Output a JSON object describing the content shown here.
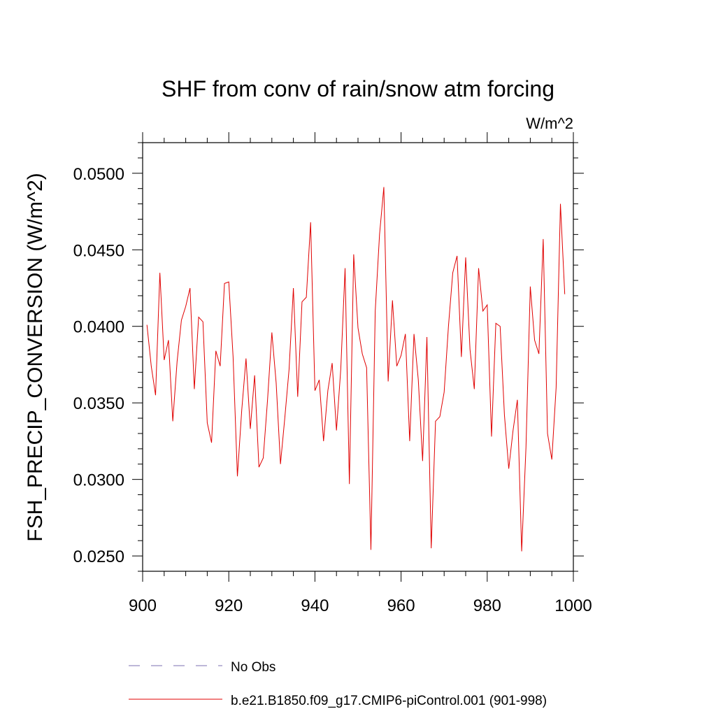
{
  "chart_data": {
    "type": "line",
    "title": "SHF from conv of rain/snow atm forcing",
    "units_label": "W/m^2",
    "ylabel": "FSH_PRECIP_CONVERSION  (W/m^2)",
    "xlabel": "",
    "xlim": [
      900,
      1000
    ],
    "ylim": [
      0.024,
      0.052
    ],
    "xticks": [
      900,
      920,
      940,
      960,
      980,
      1000
    ],
    "xtick_labels": [
      "900",
      "920",
      "940",
      "960",
      "980",
      "1000"
    ],
    "yticks": [
      0.025,
      0.03,
      0.035,
      0.04,
      0.045,
      0.05
    ],
    "ytick_labels": [
      "0.0250",
      "0.0300",
      "0.0350",
      "0.0400",
      "0.0450",
      "0.0500"
    ],
    "grid": false,
    "legend_position": "bottom",
    "legend": [
      {
        "label": "No Obs",
        "color": "#7b6fb0",
        "style": "dashed"
      },
      {
        "label": "b.e21.B1850.f09_g17.CMIP6-piControl.001 (901-998)",
        "color": "#e00000",
        "style": "solid"
      }
    ],
    "series": [
      {
        "name": "b.e21.B1850.f09_g17.CMIP6-piControl.001 (901-998)",
        "color": "#e00000",
        "x_start": 901,
        "values": [
          0.0401,
          0.0374,
          0.0355,
          0.0435,
          0.0378,
          0.0391,
          0.0338,
          0.0377,
          0.0404,
          0.0413,
          0.0425,
          0.0359,
          0.0406,
          0.0403,
          0.0337,
          0.0324,
          0.0384,
          0.0374,
          0.0428,
          0.0429,
          0.038,
          0.0302,
          0.0345,
          0.0379,
          0.0333,
          0.0368,
          0.0308,
          0.0314,
          0.0352,
          0.0396,
          0.0363,
          0.031,
          0.034,
          0.0372,
          0.0425,
          0.0354,
          0.0416,
          0.0419,
          0.0468,
          0.0358,
          0.0365,
          0.0325,
          0.0358,
          0.0376,
          0.0332,
          0.0372,
          0.0438,
          0.0297,
          0.0447,
          0.0399,
          0.0382,
          0.0373,
          0.0254,
          0.041,
          0.046,
          0.0491,
          0.0364,
          0.0417,
          0.0374,
          0.0381,
          0.0395,
          0.0325,
          0.0395,
          0.0365,
          0.0312,
          0.0393,
          0.0255,
          0.0338,
          0.0341,
          0.0357,
          0.04,
          0.0435,
          0.0446,
          0.038,
          0.0445,
          0.0385,
          0.0359,
          0.0438,
          0.041,
          0.0414,
          0.0328,
          0.0402,
          0.04,
          0.0342,
          0.0307,
          0.0332,
          0.0352,
          0.0253,
          0.0321,
          0.0426,
          0.0391,
          0.0382,
          0.0457,
          0.033,
          0.0313,
          0.036,
          0.048,
          0.0421
        ]
      }
    ]
  }
}
